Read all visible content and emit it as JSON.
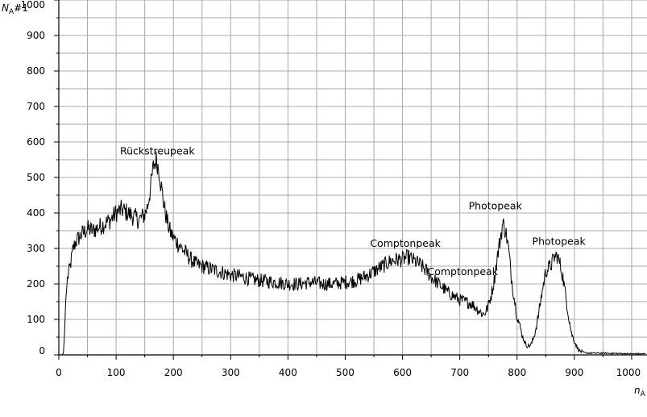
{
  "chart_data": {
    "type": "line",
    "ylabel": {
      "symbol": "N",
      "subscript": "A",
      "suffix": "#1"
    },
    "xlabel": {
      "symbol": "n",
      "subscript": "A"
    },
    "xlim": [
      0,
      1024
    ],
    "ylim": [
      0,
      1000
    ],
    "grid": true,
    "x_ticks": [
      0,
      100,
      200,
      300,
      400,
      500,
      600,
      700,
      800,
      900,
      1000
    ],
    "y_ticks": [
      0,
      100,
      200,
      300,
      400,
      500,
      600,
      700,
      800,
      900,
      1000
    ],
    "series": [
      {
        "color": "#000000",
        "x": [
          0,
          5,
          8,
          10,
          12,
          15,
          20,
          25,
          30,
          40,
          50,
          60,
          70,
          80,
          90,
          100,
          110,
          120,
          130,
          140,
          150,
          155,
          160,
          165,
          170,
          175,
          180,
          185,
          190,
          195,
          200,
          210,
          220,
          230,
          240,
          250,
          260,
          270,
          280,
          300,
          320,
          340,
          360,
          380,
          400,
          420,
          440,
          460,
          480,
          500,
          520,
          540,
          560,
          580,
          600,
          610,
          620,
          630,
          640,
          650,
          660,
          680,
          700,
          720,
          730,
          740,
          745,
          750,
          755,
          760,
          765,
          770,
          775,
          780,
          785,
          790,
          795,
          800,
          805,
          810,
          815,
          820,
          825,
          830,
          835,
          840,
          845,
          850,
          855,
          860,
          865,
          870,
          875,
          880,
          885,
          890,
          895,
          900,
          905,
          910,
          915,
          920,
          930,
          950,
          1000,
          1024
        ],
        "y": [
          0,
          0,
          5,
          60,
          150,
          215,
          250,
          300,
          320,
          340,
          355,
          350,
          360,
          370,
          380,
          400,
          410,
          400,
          390,
          380,
          395,
          420,
          470,
          530,
          550,
          520,
          460,
          410,
          370,
          345,
          330,
          310,
          290,
          270,
          255,
          250,
          245,
          240,
          235,
          225,
          220,
          212,
          208,
          205,
          200,
          200,
          205,
          200,
          200,
          205,
          210,
          225,
          245,
          265,
          270,
          275,
          265,
          255,
          240,
          220,
          205,
          175,
          155,
          145,
          130,
          115,
          120,
          140,
          170,
          210,
          270,
          320,
          370,
          350,
          300,
          220,
          160,
          110,
          80,
          50,
          30,
          25,
          30,
          55,
          90,
          140,
          190,
          235,
          245,
          255,
          275,
          280,
          255,
          220,
          165,
          110,
          60,
          40,
          20,
          10,
          8,
          5,
          5,
          5,
          3,
          3
        ]
      }
    ],
    "annotations": [
      {
        "text": "Rückstreupeak",
        "x": 172,
        "y": 565
      },
      {
        "text": "Comptonpeak",
        "x": 605,
        "y": 305
      },
      {
        "text": "Comptonpeak",
        "x": 705,
        "y": 225
      },
      {
        "text": "Photopeak",
        "x": 762,
        "y": 410
      },
      {
        "text": "Photopeak",
        "x": 873,
        "y": 310
      }
    ]
  }
}
